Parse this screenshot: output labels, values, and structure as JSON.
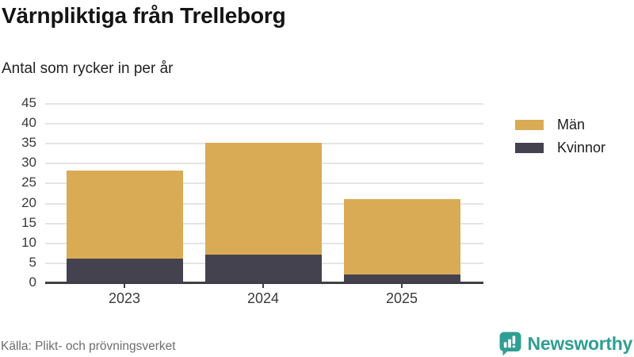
{
  "header": {
    "title": "Värnpliktiga från Trelleborg",
    "subtitle": "Antal som rycker in per år"
  },
  "chart_data": {
    "type": "bar",
    "stacked": true,
    "title": "Värnpliktiga från Trelleborg",
    "subtitle": "Antal som rycker in per år",
    "categories": [
      "2023",
      "2024",
      "2025"
    ],
    "series": [
      {
        "name": "Män",
        "values": [
          22,
          28,
          19
        ],
        "color": "#d9ab55",
        "stack_position": "top"
      },
      {
        "name": "Kvinnor",
        "values": [
          6,
          7,
          2
        ],
        "color": "#454250",
        "stack_position": "bottom"
      }
    ],
    "totals": [
      28,
      35,
      21
    ],
    "xlabel": "",
    "ylabel": "",
    "ylim": [
      0,
      45
    ],
    "yticks": [
      0,
      5,
      10,
      15,
      20,
      25,
      30,
      35,
      40,
      45
    ],
    "grid": true,
    "legend_position": "right",
    "axis_color": "#3f3f48",
    "gridline_color": "#e4e4e4"
  },
  "footer": {
    "source": "Källa: Plikt- och prövningsverket",
    "brand": "Newsworthy",
    "brand_color": "#2f9e93"
  }
}
